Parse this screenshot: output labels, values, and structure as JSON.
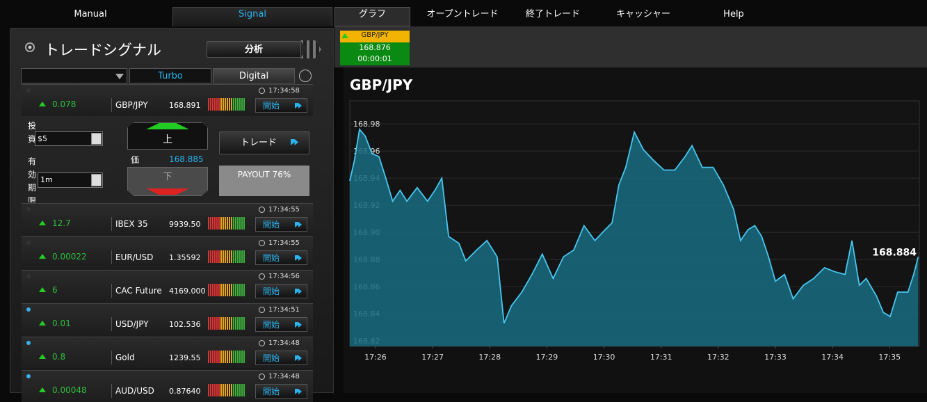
{
  "nav": {
    "tabs": [
      "Manual",
      "Signal",
      "グラフ",
      "オープントレード",
      "終了トレード",
      "キャッシャー",
      "Help"
    ]
  },
  "signal_panel": {
    "title": "トレードシグナル",
    "analyze_button": "分析",
    "tabs": [
      "Turbo",
      "Digital"
    ],
    "signals": [
      {
        "time": "17:34:58",
        "change": "0.078",
        "asset": "GBP/JPY",
        "price": "168.891",
        "button": "開始",
        "dot": "#333"
      },
      {
        "time": "17:34:55",
        "change": "12.7",
        "asset": "IBEX 35",
        "price": "9939.50",
        "button": "開始",
        "dot": "#333"
      },
      {
        "time": "17:34:55",
        "change": "0.00022",
        "asset": "EUR/USD",
        "price": "1.35592",
        "button": "開始",
        "dot": "#333"
      },
      {
        "time": "17:34:56",
        "change": "6",
        "asset": "CAC Future",
        "price": "4169.000",
        "button": "開始",
        "dot": "#333"
      },
      {
        "time": "17:34:51",
        "change": "0.01",
        "asset": "USD/JPY",
        "price": "102.536",
        "button": "開始",
        "dot": "#3ab0f0"
      },
      {
        "time": "17:34:48",
        "change": "0.8",
        "asset": "Gold",
        "price": "1239.55",
        "button": "開始",
        "dot": "#3ab0f0"
      },
      {
        "time": "17:34:48",
        "change": "0.00048",
        "asset": "AUD/USD",
        "price": "0.87640",
        "button": "開始",
        "dot": "#3ab0f0"
      }
    ],
    "trade_form": {
      "investment_label": "投資",
      "investment": "$5",
      "expiry_label": "有効期限",
      "expiry": "1m",
      "up": "上",
      "price_label": "価",
      "price": "168.885",
      "down": "下",
      "trade_button": "トレード",
      "payout": "PAYOUT 76%"
    }
  },
  "ticker": {
    "asset": "GBP/JPY",
    "price": "168.876",
    "timer": "00:00:01"
  },
  "chart_data": {
    "type": "area",
    "title": "GBP/JPY",
    "annotation": "168.884",
    "color": "#48c6ee",
    "fill": "#176b80",
    "grid": true,
    "x": [
      25.55,
      25.63,
      25.72,
      25.82,
      25.94,
      26.06,
      26.18,
      26.3,
      26.43,
      26.55,
      26.73,
      26.91,
      27.04,
      27.16,
      27.28,
      27.46,
      27.58,
      27.77,
      27.95,
      28.13,
      28.25,
      28.38,
      28.56,
      28.74,
      28.92,
      29.11,
      29.29,
      29.47,
      29.65,
      29.84,
      30.02,
      30.14,
      30.26,
      30.38,
      30.53,
      30.69,
      30.87,
      31.05,
      31.24,
      31.42,
      31.54,
      31.72,
      31.91,
      32.09,
      32.27,
      32.39,
      32.52,
      32.64,
      32.76,
      32.88,
      33.0,
      33.16,
      33.31,
      33.49,
      33.67,
      33.86,
      34.04,
      34.22,
      34.34,
      34.47,
      34.59,
      34.77,
      34.89,
      35.01,
      35.14,
      35.32,
      35.42,
      35.5
    ],
    "values": [
      168.938,
      168.953,
      168.976,
      168.971,
      168.958,
      168.956,
      168.94,
      168.923,
      168.931,
      168.923,
      168.933,
      168.923,
      168.931,
      168.94,
      168.897,
      168.892,
      168.879,
      168.887,
      168.894,
      168.882,
      168.833,
      168.846,
      168.856,
      168.869,
      168.884,
      168.866,
      168.882,
      168.887,
      168.905,
      168.894,
      168.902,
      168.907,
      168.935,
      168.948,
      168.974,
      168.961,
      168.953,
      168.946,
      168.946,
      168.956,
      168.964,
      168.948,
      168.948,
      168.935,
      168.917,
      168.894,
      168.902,
      168.905,
      168.897,
      168.882,
      168.864,
      168.869,
      168.851,
      168.861,
      168.866,
      168.874,
      168.871,
      168.869,
      168.894,
      168.861,
      168.866,
      168.853,
      168.841,
      168.838,
      168.856,
      168.856,
      168.869,
      168.882
    ],
    "xlim": [
      25.55,
      35.52
    ],
    "ylim": [
      168.816,
      168.997
    ],
    "xticks": [
      {
        "value": 26,
        "label": "17:26"
      },
      {
        "value": 27,
        "label": "17:27"
      },
      {
        "value": 28,
        "label": "17:28"
      },
      {
        "value": 29,
        "label": "17:29"
      },
      {
        "value": 30,
        "label": "17:30"
      },
      {
        "value": 31,
        "label": "17:31"
      },
      {
        "value": 32,
        "label": "17:32"
      },
      {
        "value": 33,
        "label": "17:33"
      },
      {
        "value": 34,
        "label": "17:34"
      },
      {
        "value": 35,
        "label": "17:35"
      }
    ],
    "yticks": [
      168.82,
      168.84,
      168.86,
      168.88,
      {
        "value": 168.9,
        "label": "168.90"
      },
      168.92,
      168.94,
      168.96,
      168.98
    ]
  }
}
